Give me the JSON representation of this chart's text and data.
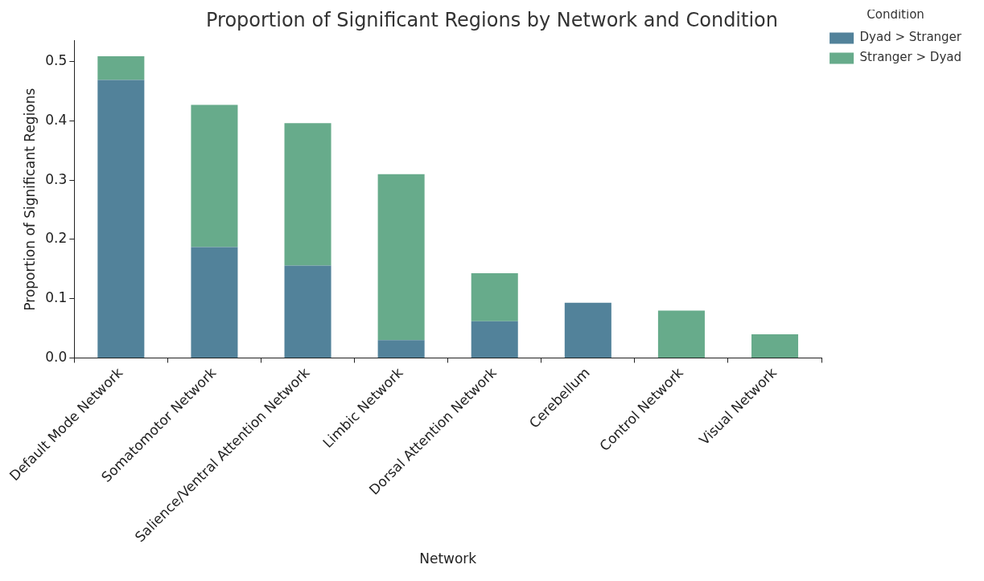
{
  "chart_data": {
    "type": "bar",
    "title": "Proportion of Significant Regions by Network and Condition",
    "xlabel": "Network",
    "ylabel": "Proportion of Significant Regions",
    "legend_title": "Condition",
    "categories": [
      "Default Mode Network",
      "Somatomotor Network",
      "Salience/Ventral Attention Network",
      "Limbic Network",
      "Dorsal Attention Network",
      "Cerebellum",
      "Control Network",
      "Visual Network"
    ],
    "series": [
      {
        "name": "Dyad > Stranger",
        "color": "#52829a",
        "values": [
          0.469,
          0.187,
          0.156,
          0.03,
          0.062,
          0.093,
          0,
          0
        ]
      },
      {
        "name": "Stranger > Dyad",
        "color": "#67ab8b",
        "values": [
          0.04,
          0.24,
          0.24,
          0.28,
          0.081,
          0,
          0.08,
          0.04
        ]
      }
    ],
    "stacked": true,
    "ylim": [
      0,
      0.535
    ],
    "yticks": [
      {
        "value": 0,
        "label": "0.0"
      },
      {
        "value": 0.1,
        "label": "0.1"
      },
      {
        "value": 0.2,
        "label": "0.2"
      },
      {
        "value": 0.3,
        "label": "0.3"
      },
      {
        "value": 0.4,
        "label": "0.4"
      },
      {
        "value": 0.5,
        "label": "0.5"
      }
    ],
    "grid": false,
    "legend": "top right"
  }
}
